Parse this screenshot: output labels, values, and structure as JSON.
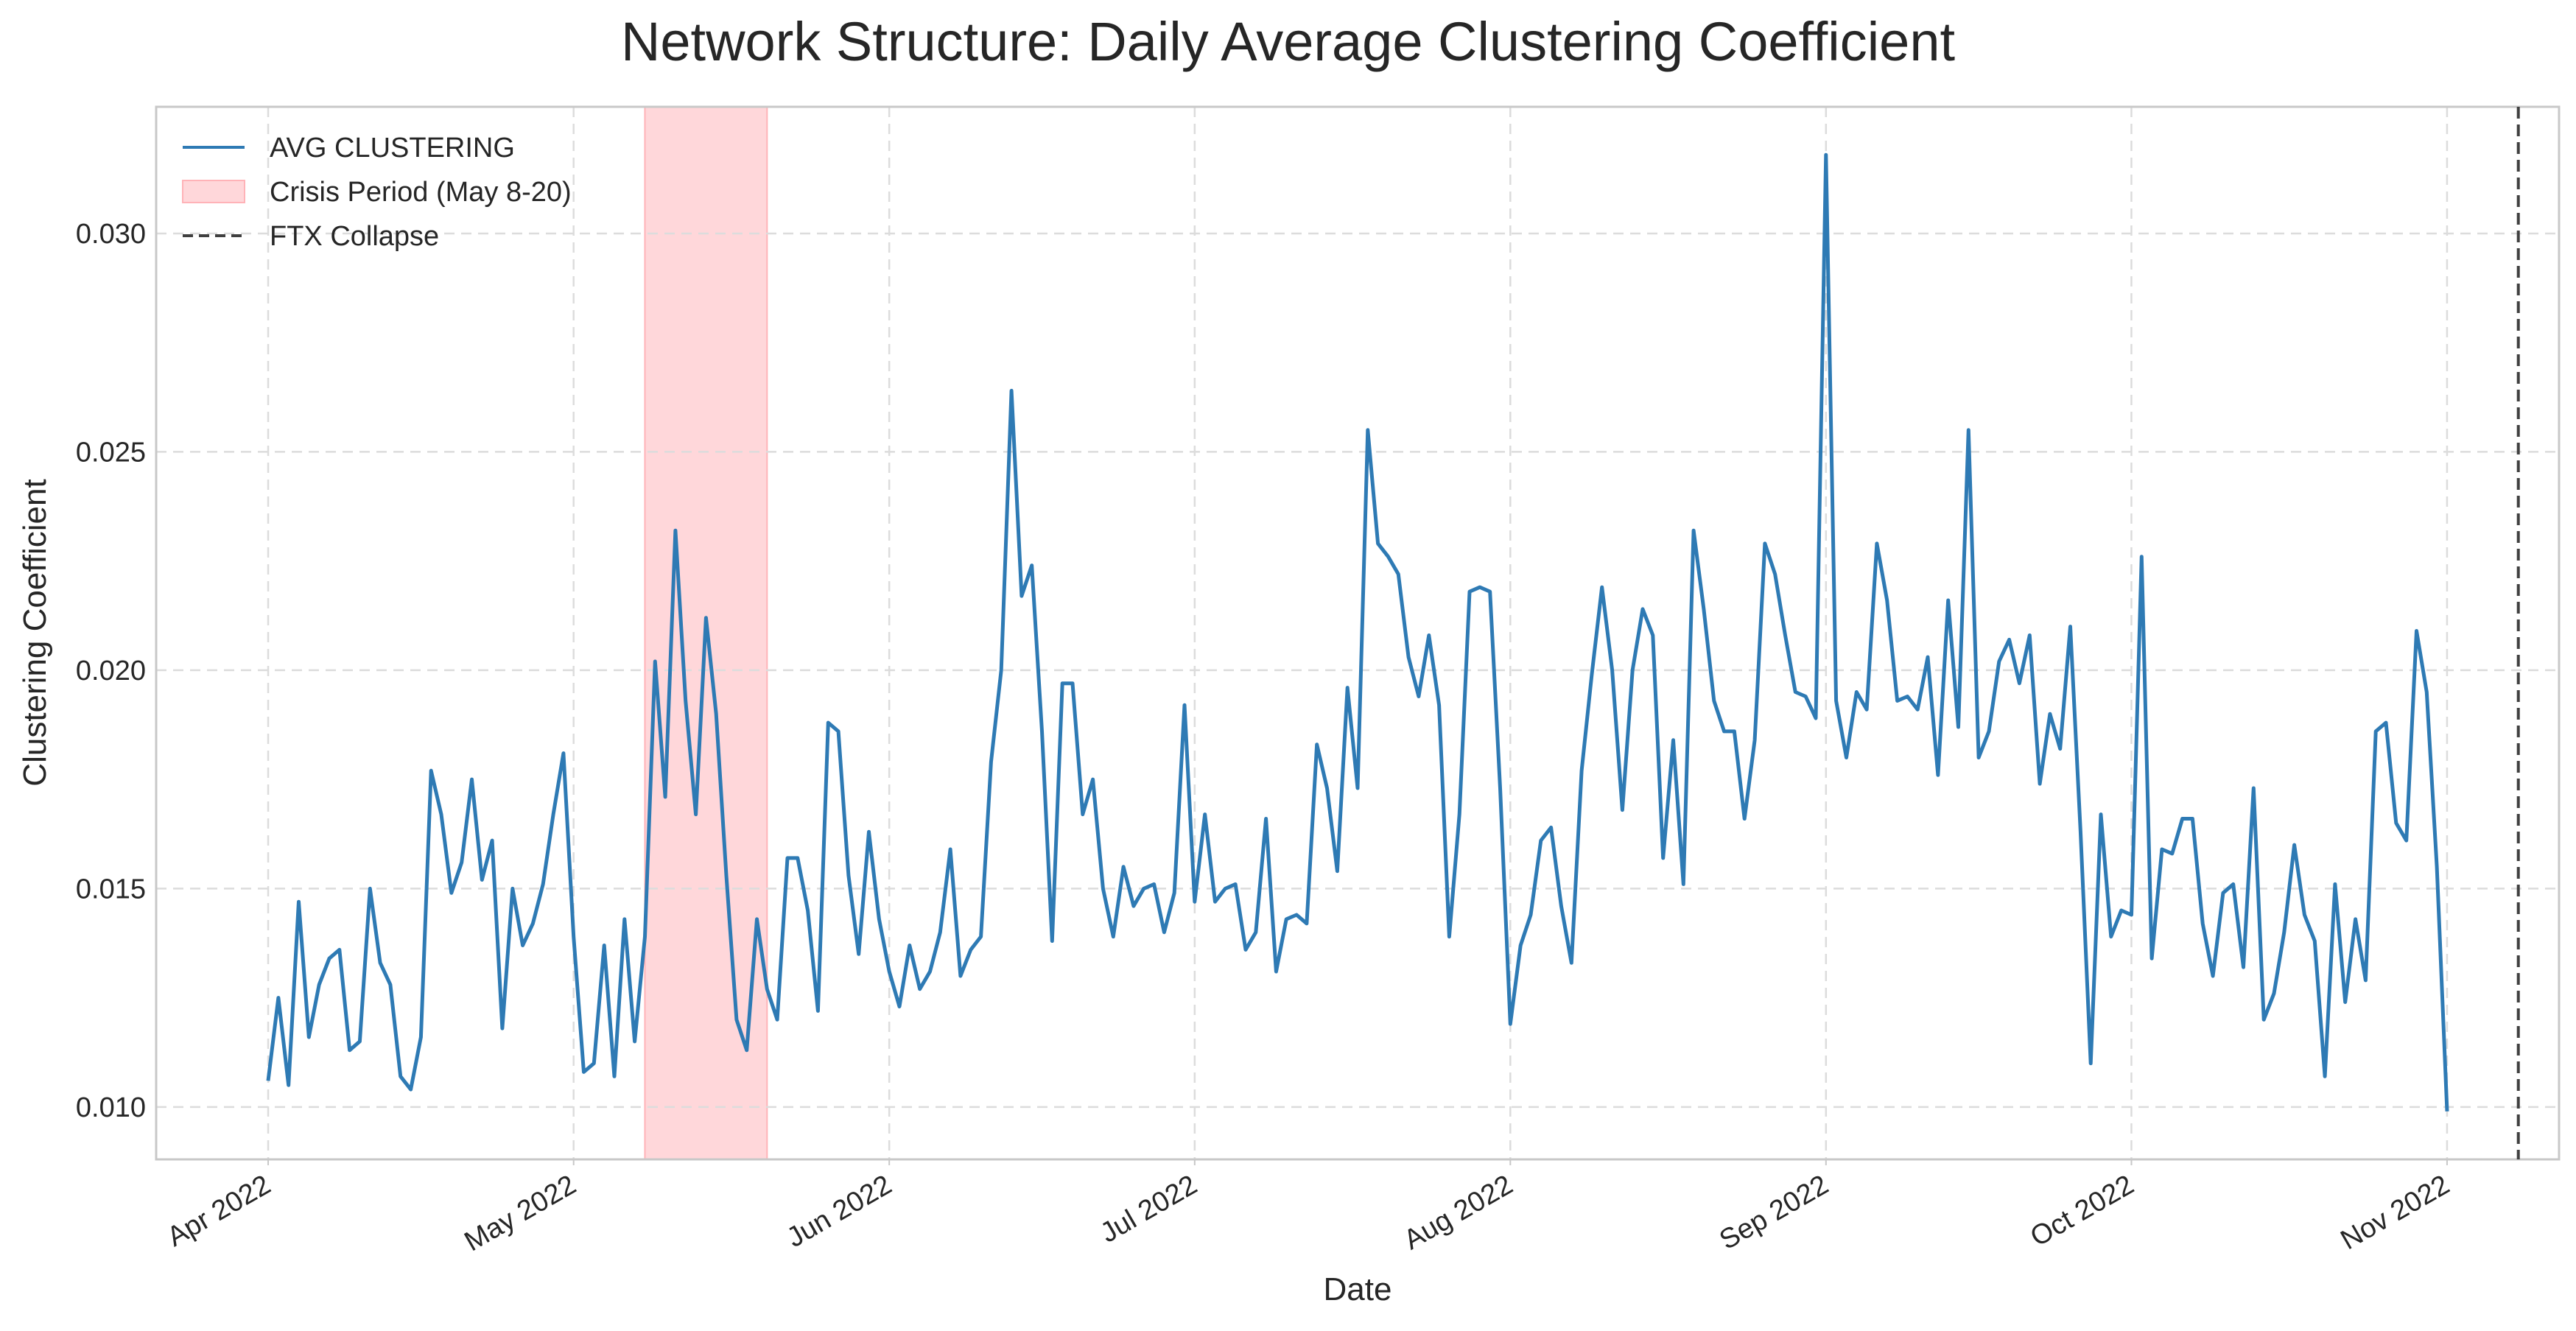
{
  "chart_data": {
    "type": "line",
    "title": "Network Structure: Daily Average Clustering Coefficient",
    "xlabel": "Date",
    "ylabel": "Clustering Coefficient",
    "grid": true,
    "legend_position": "top-left",
    "xlim": [
      "2022-03-21",
      "2022-11-12"
    ],
    "ylim": [
      0.0088,
      0.0329
    ],
    "x_ticks": [
      {
        "date": "2022-04-01",
        "label": "Apr 2022"
      },
      {
        "date": "2022-05-01",
        "label": "May 2022"
      },
      {
        "date": "2022-06-01",
        "label": "Jun 2022"
      },
      {
        "date": "2022-07-01",
        "label": "Jul 2022"
      },
      {
        "date": "2022-08-01",
        "label": "Aug 2022"
      },
      {
        "date": "2022-09-01",
        "label": "Sep 2022"
      },
      {
        "date": "2022-10-01",
        "label": "Oct 2022"
      },
      {
        "date": "2022-11-01",
        "label": "Nov 2022"
      }
    ],
    "y_ticks": [
      {
        "value": 0.01,
        "label": "0.010"
      },
      {
        "value": 0.015,
        "label": "0.015"
      },
      {
        "value": 0.02,
        "label": "0.020"
      },
      {
        "value": 0.025,
        "label": "0.025"
      },
      {
        "value": 0.03,
        "label": "0.030"
      }
    ],
    "series": [
      {
        "name": "AVG CLUSTERING",
        "color": "#2e7ab4",
        "start_date": "2022-04-01",
        "values": [
          0.0106,
          0.0125,
          0.0105,
          0.0147,
          0.0116,
          0.0128,
          0.0134,
          0.0136,
          0.0113,
          0.0115,
          0.015,
          0.0133,
          0.0128,
          0.0107,
          0.0104,
          0.0116,
          0.0177,
          0.0167,
          0.0149,
          0.0156,
          0.0175,
          0.0152,
          0.0161,
          0.0118,
          0.015,
          0.0137,
          0.0142,
          0.0151,
          0.0167,
          0.0181,
          0.0139,
          0.0108,
          0.011,
          0.0137,
          0.0107,
          0.0143,
          0.0115,
          0.0139,
          0.0202,
          0.0171,
          0.0232,
          0.0193,
          0.0167,
          0.0212,
          0.019,
          0.0153,
          0.012,
          0.0113,
          0.0143,
          0.0127,
          0.012,
          0.0157,
          0.0157,
          0.0145,
          0.0122,
          0.0188,
          0.0186,
          0.0153,
          0.0135,
          0.0163,
          0.0143,
          0.0131,
          0.0123,
          0.0137,
          0.0127,
          0.0131,
          0.014,
          0.0159,
          0.013,
          0.0136,
          0.0139,
          0.0179,
          0.02,
          0.0264,
          0.0217,
          0.0224,
          0.0186,
          0.0138,
          0.0197,
          0.0197,
          0.0167,
          0.0175,
          0.015,
          0.0139,
          0.0155,
          0.0146,
          0.015,
          0.0151,
          0.014,
          0.0149,
          0.0192,
          0.0147,
          0.0167,
          0.0147,
          0.015,
          0.0151,
          0.0136,
          0.014,
          0.0166,
          0.0131,
          0.0143,
          0.0144,
          0.0142,
          0.0183,
          0.0173,
          0.0154,
          0.0196,
          0.0173,
          0.0255,
          0.0229,
          0.0226,
          0.0222,
          0.0203,
          0.0194,
          0.0208,
          0.0192,
          0.0139,
          0.0167,
          0.0218,
          0.0219,
          0.0218,
          0.0173,
          0.0119,
          0.0137,
          0.0144,
          0.0161,
          0.0164,
          0.0146,
          0.0133,
          0.0177,
          0.0199,
          0.0219,
          0.02,
          0.0168,
          0.02,
          0.0214,
          0.0208,
          0.0157,
          0.0184,
          0.0151,
          0.0232,
          0.0214,
          0.0193,
          0.0186,
          0.0186,
          0.0166,
          0.0184,
          0.0229,
          0.0222,
          0.0208,
          0.0195,
          0.0194,
          0.0189,
          0.0318,
          0.0193,
          0.018,
          0.0195,
          0.0191,
          0.0229,
          0.0216,
          0.0193,
          0.0194,
          0.0191,
          0.0203,
          0.0176,
          0.0216,
          0.0187,
          0.0255,
          0.018,
          0.0186,
          0.0202,
          0.0207,
          0.0197,
          0.0208,
          0.0174,
          0.019,
          0.0182,
          0.021,
          0.0163,
          0.011,
          0.0167,
          0.0139,
          0.0145,
          0.0144,
          0.0226,
          0.0134,
          0.0159,
          0.0158,
          0.0166,
          0.0166,
          0.0142,
          0.013,
          0.0149,
          0.0151,
          0.0132,
          0.0173,
          0.012,
          0.0126,
          0.014,
          0.016,
          0.0144,
          0.0138,
          0.0107,
          0.0151,
          0.0124,
          0.0143,
          0.0129,
          0.0186,
          0.0188,
          0.0165,
          0.0161,
          0.0209,
          0.0195,
          0.0155,
          0.0099
        ]
      }
    ],
    "shaded_regions": [
      {
        "name": "Crisis Period (May 8-20)",
        "start": "2022-05-08",
        "end": "2022-05-20",
        "color": "#ff9da3"
      }
    ],
    "vertical_lines": [
      {
        "name": "FTX Collapse",
        "date": "2022-11-08",
        "color": "#404040",
        "style": "dashed"
      }
    ]
  }
}
